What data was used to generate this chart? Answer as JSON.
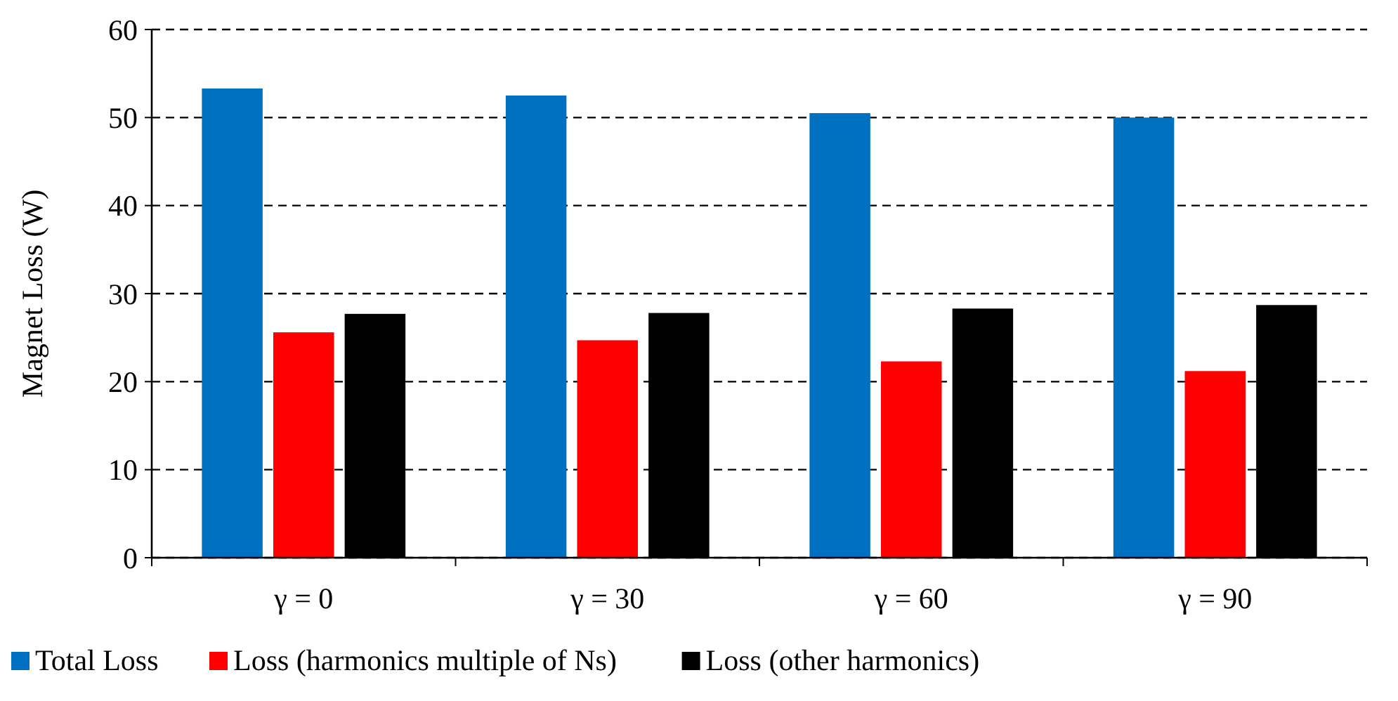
{
  "chart_data": {
    "type": "bar",
    "ylabel": "Magnet Loss (W)",
    "categories": [
      "γ = 0",
      "γ = 30",
      "γ = 60",
      "γ = 90"
    ],
    "series": [
      {
        "name": "Total Loss",
        "color": "#0070c0",
        "values": [
          53.3,
          52.5,
          50.5,
          50.0
        ]
      },
      {
        "name": "Loss (harmonics multiple of Ns)",
        "color": "#ff0000",
        "values": [
          25.6,
          24.7,
          22.3,
          21.2
        ]
      },
      {
        "name": "Loss (other harmonics)",
        "color": "#000000",
        "values": [
          27.7,
          27.8,
          28.3,
          28.7
        ]
      }
    ],
    "ylim": [
      0,
      60
    ],
    "yticks": [
      0,
      10,
      20,
      30,
      40,
      50,
      60
    ],
    "grid": "y",
    "legend": "bottom"
  }
}
